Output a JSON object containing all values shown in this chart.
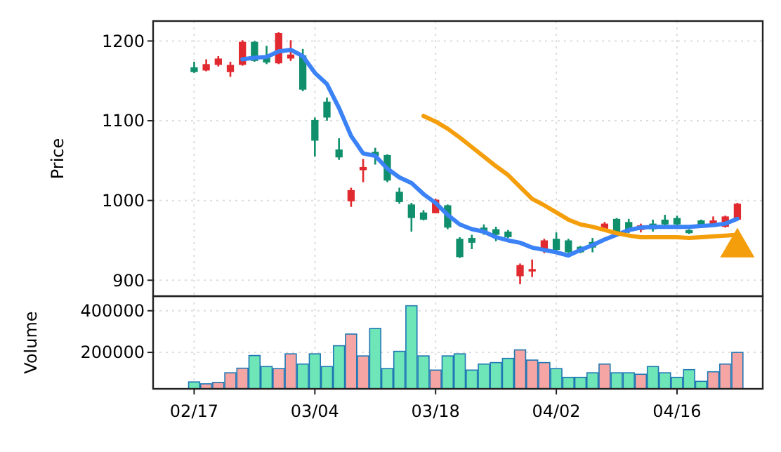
{
  "chart_data": [
    {
      "type": "candlestick",
      "ylabel": "Price",
      "categories": [
        null,
        null,
        null,
        null,
        null,
        null,
        null,
        null,
        null,
        null,
        null,
        null,
        null,
        null,
        null,
        null,
        null,
        null,
        null,
        null,
        null,
        null,
        null,
        null,
        null,
        null,
        null,
        null,
        null,
        null,
        null,
        null,
        null,
        null,
        null,
        null,
        null,
        null,
        null,
        null,
        null,
        null,
        null,
        null,
        null,
        null
      ],
      "ohlc": [
        [
          1167,
          1174,
          1160,
          1161
        ],
        [
          1163,
          1177,
          1162,
          1171
        ],
        [
          1170,
          1181,
          1168,
          1178
        ],
        [
          1161,
          1174,
          1155,
          1170
        ],
        [
          1170,
          1201,
          1169,
          1199
        ],
        [
          1199,
          1200,
          1174,
          1175
        ],
        [
          1182,
          1194,
          1171,
          1173
        ],
        [
          1172,
          1211,
          1171,
          1210
        ],
        [
          1178,
          1201,
          1175,
          1183
        ],
        [
          1182,
          1190,
          1137,
          1139
        ],
        [
          1101,
          1104,
          1055,
          1075
        ],
        [
          1124,
          1129,
          1100,
          1104
        ],
        [
          1064,
          1078,
          1051,
          1054
        ],
        [
          999,
          1016,
          992,
          1013
        ],
        [
          1038,
          1052,
          1023,
          1042
        ],
        [
          1061,
          1066,
          1045,
          1056
        ],
        [
          1057,
          1058,
          1023,
          1025
        ],
        [
          1011,
          1016,
          996,
          998
        ],
        [
          995,
          997,
          961,
          978
        ],
        [
          985,
          988,
          975,
          976
        ],
        [
          984,
          1002,
          984,
          1001
        ],
        [
          994,
          995,
          964,
          966
        ],
        [
          952,
          954,
          928,
          929
        ],
        [
          953,
          957,
          939,
          947
        ],
        [
          966,
          970,
          957,
          959
        ],
        [
          964,
          967,
          949,
          957
        ],
        [
          961,
          963,
          953,
          954
        ],
        [
          905,
          921,
          895,
          919
        ],
        [
          911,
          926,
          904,
          914
        ],
        [
          939,
          952,
          934,
          950
        ],
        [
          952,
          960,
          936,
          938
        ],
        [
          950,
          952,
          934,
          935
        ],
        [
          942,
          943,
          934,
          935
        ],
        [
          948,
          953,
          935,
          941
        ],
        [
          964,
          973,
          963,
          971
        ],
        [
          977,
          978,
          960,
          961
        ],
        [
          973,
          977,
          959,
          961
        ],
        [
          963,
          971,
          960,
          969
        ],
        [
          971,
          976,
          961,
          964
        ],
        [
          976,
          982,
          967,
          970
        ],
        [
          978,
          981,
          968,
          970
        ],
        [
          963,
          964,
          958,
          959
        ],
        [
          975,
          976,
          968,
          969
        ],
        [
          970,
          980,
          969,
          975
        ],
        [
          967,
          981,
          966,
          980
        ],
        [
          976,
          997,
          975,
          996
        ]
      ],
      "colors": [
        "#0f8f6b",
        "#e12a2f",
        "#e12a2f",
        "#e12a2f",
        "#e12a2f",
        "#0f8f6b",
        "#0f8f6b",
        "#e12a2f",
        "#e12a2f",
        "#0f8f6b",
        "#0f8f6b",
        "#0f8f6b",
        "#0f8f6b",
        "#e12a2f",
        "#e12a2f",
        "#0f8f6b",
        "#0f8f6b",
        "#0f8f6b",
        "#0f8f6b",
        "#0f8f6b",
        "#e12a2f",
        "#0f8f6b",
        "#0f8f6b",
        "#0f8f6b",
        "#0f8f6b",
        "#0f8f6b",
        "#0f8f6b",
        "#e12a2f",
        "#e12a2f",
        "#e12a2f",
        "#0f8f6b",
        "#0f8f6b",
        "#0f8f6b",
        "#0f8f6b",
        "#e12a2f",
        "#0f8f6b",
        "#0f8f6b",
        "#e12a2f",
        "#0f8f6b",
        "#0f8f6b",
        "#0f8f6b",
        "#0f8f6b",
        "#0f8f6b",
        "#e12a2f",
        "#e12a2f",
        "#e12a2f"
      ],
      "series": [
        {
          "type": "line",
          "color": "#3b82f6",
          "values": [
            null,
            null,
            null,
            null,
            1177,
            1179,
            1180,
            1187,
            1189,
            1181,
            1160,
            1146,
            1116,
            1081,
            1059,
            1056,
            1040,
            1029,
            1022,
            1008,
            997,
            982,
            970,
            964,
            961,
            954,
            950,
            947,
            941,
            938,
            935,
            931,
            938,
            944,
            951,
            957,
            963,
            966,
            967,
            967,
            967,
            967,
            968,
            969,
            971,
            977
          ]
        },
        {
          "type": "line",
          "color": "#f59e0b",
          "values": [
            null,
            null,
            null,
            null,
            null,
            null,
            null,
            null,
            null,
            null,
            null,
            null,
            null,
            null,
            null,
            null,
            null,
            null,
            null,
            1106,
            1099,
            1090,
            1079,
            1067,
            1055,
            1043,
            1032,
            1017,
            1002,
            994,
            985,
            976,
            970,
            967,
            963,
            959,
            956,
            954,
            954,
            954,
            954,
            953,
            954,
            955,
            956,
            957
          ]
        },
        {
          "type": "scatter",
          "marker": "triangle",
          "color": "#f59e0b",
          "values": [
            null,
            null,
            null,
            null,
            null,
            null,
            null,
            null,
            null,
            null,
            null,
            null,
            null,
            null,
            null,
            null,
            null,
            null,
            null,
            null,
            null,
            null,
            null,
            null,
            null,
            null,
            null,
            null,
            null,
            null,
            null,
            null,
            null,
            null,
            null,
            null,
            null,
            null,
            null,
            null,
            null,
            null,
            null,
            null,
            null,
            941
          ]
        }
      ],
      "ylim": [
        880,
        1225
      ],
      "yticks": [
        900,
        1000,
        1100,
        1200
      ],
      "grid": true,
      "tick_labels": "y",
      "line_style": "solid"
    },
    {
      "type": "bar",
      "ylabel": "Volume",
      "categories": [
        "02/17",
        null,
        null,
        null,
        null,
        null,
        null,
        null,
        null,
        null,
        "03/04",
        null,
        null,
        null,
        null,
        null,
        null,
        null,
        null,
        null,
        "03/18",
        null,
        null,
        null,
        null,
        null,
        null,
        null,
        null,
        null,
        "04/02",
        null,
        null,
        null,
        null,
        null,
        null,
        null,
        null,
        null,
        "04/16",
        null,
        null,
        null,
        null,
        null
      ],
      "values": [
        58000,
        49000,
        56000,
        102000,
        124000,
        185000,
        132000,
        122000,
        193000,
        144000,
        193000,
        132000,
        232000,
        288000,
        183000,
        315000,
        122000,
        205000,
        424000,
        183000,
        115000,
        183000,
        193000,
        115000,
        144000,
        151000,
        171000,
        212000,
        163000,
        151000,
        122000,
        80000,
        80000,
        102000,
        144000,
        102000,
        102000,
        95000,
        132000,
        102000,
        80000,
        117000,
        61000,
        107000,
        144000,
        200000
      ],
      "colors": [
        "#6ee6b8",
        "#f6a5a5",
        "#f6a5a5",
        "#f6a5a5",
        "#f6a5a5",
        "#6ee6b8",
        "#6ee6b8",
        "#f6a5a5",
        "#f6a5a5",
        "#6ee6b8",
        "#6ee6b8",
        "#6ee6b8",
        "#6ee6b8",
        "#f6a5a5",
        "#f6a5a5",
        "#6ee6b8",
        "#6ee6b8",
        "#6ee6b8",
        "#6ee6b8",
        "#6ee6b8",
        "#f6a5a5",
        "#6ee6b8",
        "#6ee6b8",
        "#6ee6b8",
        "#6ee6b8",
        "#6ee6b8",
        "#6ee6b8",
        "#f6a5a5",
        "#f6a5a5",
        "#f6a5a5",
        "#6ee6b8",
        "#6ee6b8",
        "#6ee6b8",
        "#6ee6b8",
        "#f6a5a5",
        "#6ee6b8",
        "#6ee6b8",
        "#f6a5a5",
        "#6ee6b8",
        "#6ee6b8",
        "#6ee6b8",
        "#6ee6b8",
        "#6ee6b8",
        "#f6a5a5",
        "#f6a5a5",
        "#f6a5a5"
      ],
      "ylim": [
        25000,
        470000
      ],
      "yticks": [
        200000,
        400000
      ],
      "grid": true
    }
  ]
}
